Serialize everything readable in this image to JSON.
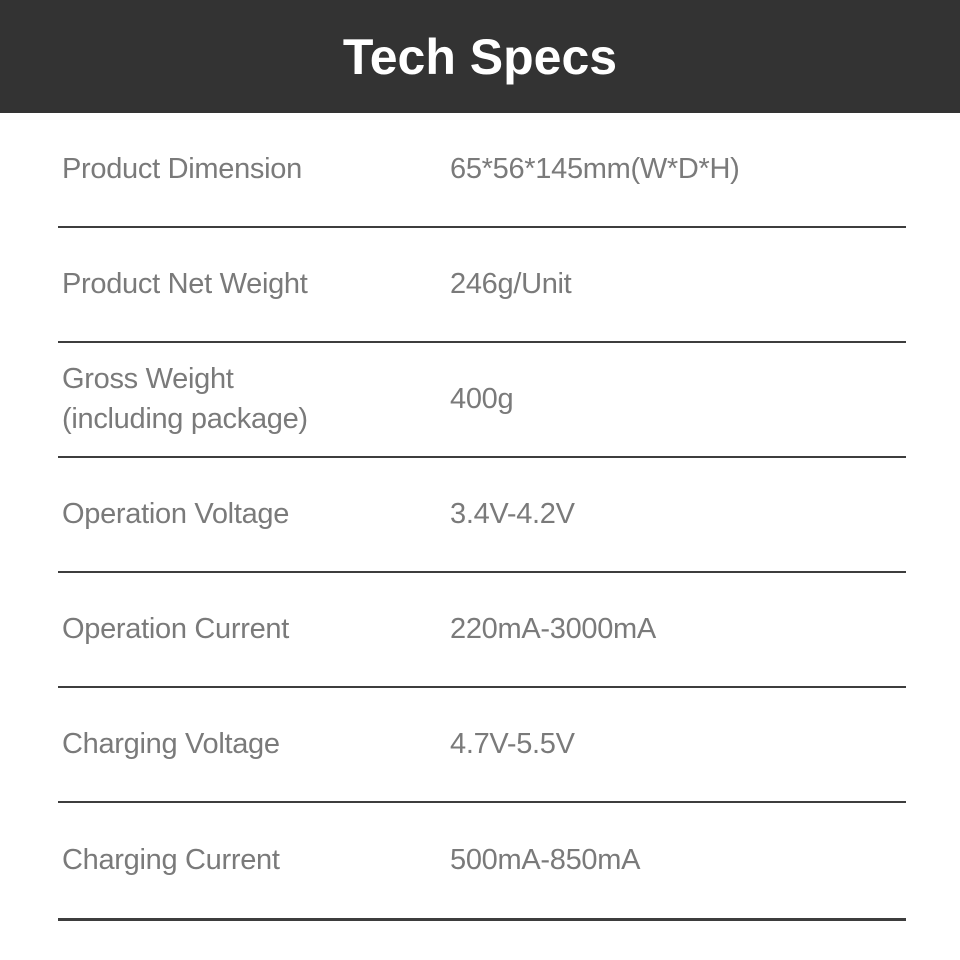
{
  "header": {
    "title": "Tech Specs"
  },
  "specs": {
    "rows": [
      {
        "label": "Product Dimension",
        "value": "65*56*145mm(W*D*H)"
      },
      {
        "label": "Product Net Weight",
        "value": "246g/Unit"
      },
      {
        "label": "Gross Weight\n(including package)",
        "value": "400g"
      },
      {
        "label": "Operation Voltage",
        "value": "3.4V-4.2V"
      },
      {
        "label": "Operation Current",
        "value": "220mA-3000mA"
      },
      {
        "label": "Charging Voltage",
        "value": "4.7V-5.5V"
      },
      {
        "label": "Charging Current",
        "value": "500mA-850mA"
      }
    ]
  },
  "colors": {
    "header_bg": "#333333",
    "title_text": "#ffffff",
    "spec_text": "#7a7a7a",
    "divider": "#3d3d3d",
    "page_bg": "#ffffff"
  }
}
